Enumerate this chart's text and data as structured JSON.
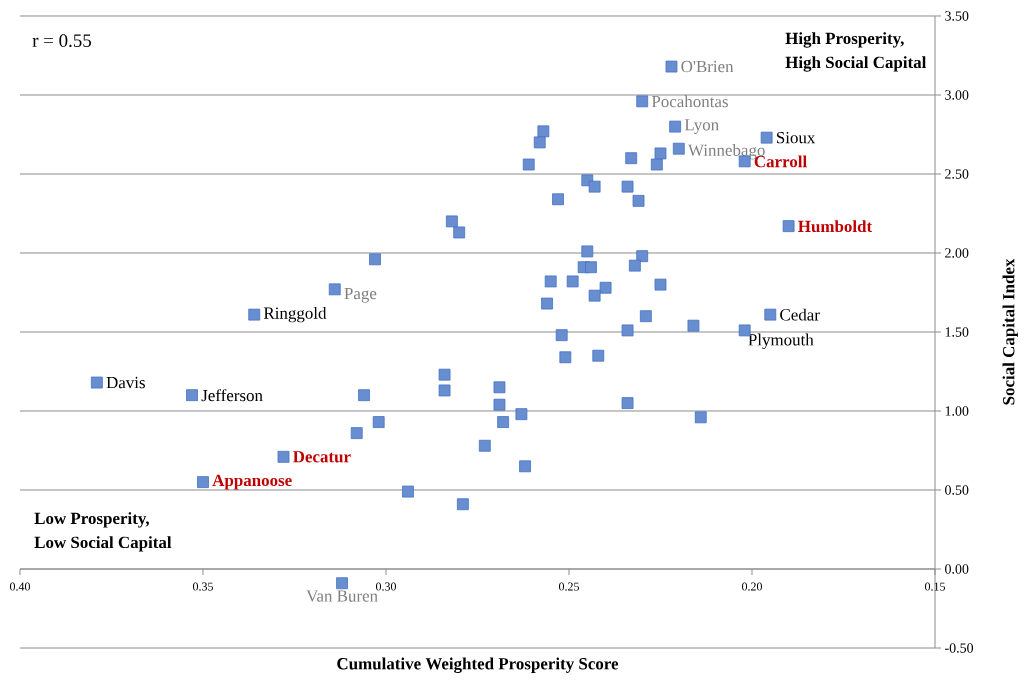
{
  "chart_data": {
    "type": "scatter",
    "xlabel": "Cumulative Weighted Prosperity Score",
    "ylabel": "Social Capital Index",
    "xlim": [
      0.4,
      0.15
    ],
    "ylim": [
      -0.5,
      3.5
    ],
    "xticks": [
      {
        "value": 0.4,
        "label": "0.40"
      },
      {
        "value": 0.35,
        "label": "0.35"
      },
      {
        "value": 0.3,
        "label": "0.30"
      },
      {
        "value": 0.25,
        "label": "0.25"
      },
      {
        "value": 0.2,
        "label": "0.20"
      },
      {
        "value": 0.15,
        "label": "0.15"
      }
    ],
    "yticks": [
      {
        "value": -0.5,
        "label": "-0.50"
      },
      {
        "value": 0,
        "label": "0.00"
      },
      {
        "value": 0.5,
        "label": "0.50"
      },
      {
        "value": 1,
        "label": "1.00"
      },
      {
        "value": 1.5,
        "label": "1.50"
      },
      {
        "value": 2,
        "label": "2.00"
      },
      {
        "value": 2.5,
        "label": "2.50"
      },
      {
        "value": 3,
        "label": "3.00"
      },
      {
        "value": 3.5,
        "label": "3.50"
      }
    ],
    "grid": "y",
    "marker": "square",
    "series": [
      {
        "color": "#4472c4",
        "x": [
          0.222,
          0.23,
          0.221,
          0.22,
          0.196,
          0.202,
          0.19,
          0.195,
          0.202,
          0.216,
          0.214,
          0.234,
          0.252,
          0.251,
          0.242,
          0.234,
          0.269,
          0.269,
          0.268,
          0.263,
          0.273,
          0.262,
          0.379,
          0.353,
          0.306,
          0.284,
          0.284,
          0.302,
          0.308,
          0.328,
          0.35,
          0.294,
          0.279,
          0.312,
          0.336,
          0.314,
          0.303,
          0.282,
          0.28,
          0.257,
          0.258,
          0.261,
          0.233,
          0.225,
          0.226,
          0.245,
          0.243,
          0.234,
          0.231,
          0.253,
          0.245,
          0.23,
          0.232,
          0.246,
          0.244,
          0.255,
          0.249,
          0.225,
          0.24,
          0.243,
          0.256,
          0.229
        ],
        "values": [
          3.18,
          2.96,
          2.8,
          2.66,
          2.73,
          2.58,
          2.17,
          1.61,
          1.51,
          1.54,
          0.96,
          1.05,
          1.48,
          1.34,
          1.35,
          1.51,
          1.15,
          1.04,
          0.93,
          0.98,
          0.78,
          0.65,
          1.18,
          1.1,
          1.1,
          1.23,
          1.13,
          0.93,
          0.86,
          0.71,
          0.55,
          0.49,
          0.41,
          -0.09,
          1.61,
          1.77,
          1.96,
          2.2,
          2.13,
          2.77,
          2.7,
          2.56,
          2.6,
          2.63,
          2.56,
          2.46,
          2.42,
          2.42,
          2.33,
          2.34,
          2.01,
          1.98,
          1.92,
          1.91,
          1.91,
          1.82,
          1.82,
          1.8,
          1.78,
          1.73,
          1.68,
          1.6
        ]
      }
    ],
    "annotations": [
      "r = 0.55",
      "High Prosperity,",
      "High Social Capital",
      "Low Prosperity,",
      "Low Social Capital",
      {
        "text": "O'Brien",
        "x": 0.222,
        "y": 3.18
      },
      {
        "text": "Pocahontas",
        "x": 0.23,
        "y": 2.96
      },
      {
        "text": "Lyon",
        "x": 0.221,
        "y": 2.8
      },
      {
        "text": "Winnebago",
        "x": 0.22,
        "y": 2.66
      },
      {
        "text": "Sioux",
        "x": 0.196,
        "y": 2.73
      },
      {
        "text": "Carroll",
        "x": 0.202,
        "y": 2.58
      },
      {
        "text": "Humboldt",
        "x": 0.19,
        "y": 2.17
      },
      {
        "text": "Cedar",
        "x": 0.195,
        "y": 1.61
      },
      {
        "text": "Plymouth",
        "x": 0.202,
        "y": 1.51
      },
      {
        "text": "Page",
        "x": 0.314,
        "y": 1.77
      },
      {
        "text": "Ringgold",
        "x": 0.336,
        "y": 1.61
      },
      {
        "text": "Davis",
        "x": 0.379,
        "y": 1.18
      },
      {
        "text": "Jefferson",
        "x": 0.353,
        "y": 1.1
      },
      {
        "text": "Decatur",
        "x": 0.328,
        "y": 0.71
      },
      {
        "text": "Appanoose",
        "x": 0.35,
        "y": 0.55
      },
      {
        "text": "Van Buren",
        "x": 0.312,
        "y": -0.09
      }
    ]
  }
}
